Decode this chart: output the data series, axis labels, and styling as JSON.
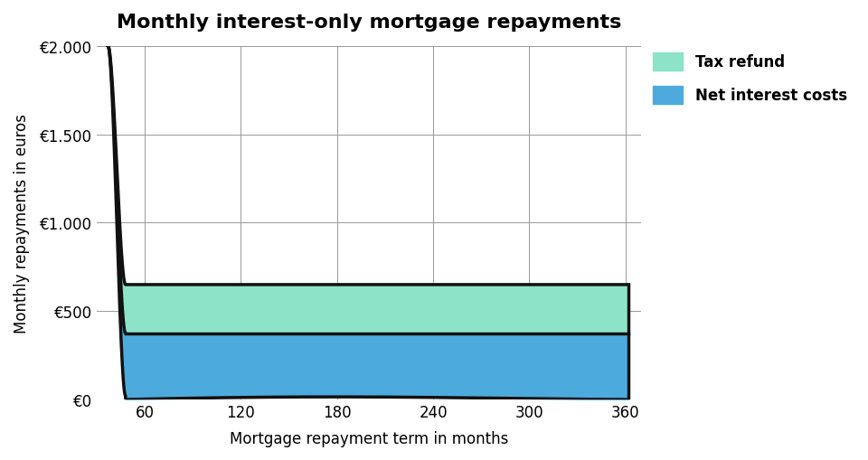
{
  "title": "Monthly interest-only mortgage repayments",
  "xlabel": "Mortgage repayment term in months",
  "ylabel": "Monthly repayments in euros",
  "xlim": [
    30,
    370
  ],
  "ylim": [
    0,
    2000
  ],
  "yticks": [
    0,
    500,
    1000,
    1500,
    2000
  ],
  "ytick_labels": [
    "€0",
    "€500",
    "€1.000",
    "€1.500",
    "€2.000"
  ],
  "xticks": [
    60,
    120,
    180,
    240,
    300,
    360
  ],
  "xtick_labels": [
    "60",
    "120",
    "180",
    "240",
    "300",
    "360"
  ],
  "net_interest_color": "#4DAADC",
  "tax_refund_color": "#8DE3C7",
  "line_color": "#111111",
  "background_color": "#ffffff",
  "grid_color": "#999999",
  "legend_tax_label": "Tax refund",
  "legend_net_label": "Net interest costs",
  "net_interest_flat": 375,
  "tax_refund_flat": 650,
  "curve_start_x": 37,
  "curve_end_x": 48,
  "flat_end_x": 362,
  "title_fontsize": 16,
  "tick_fontsize": 12,
  "label_fontsize": 12,
  "legend_fontsize": 12
}
